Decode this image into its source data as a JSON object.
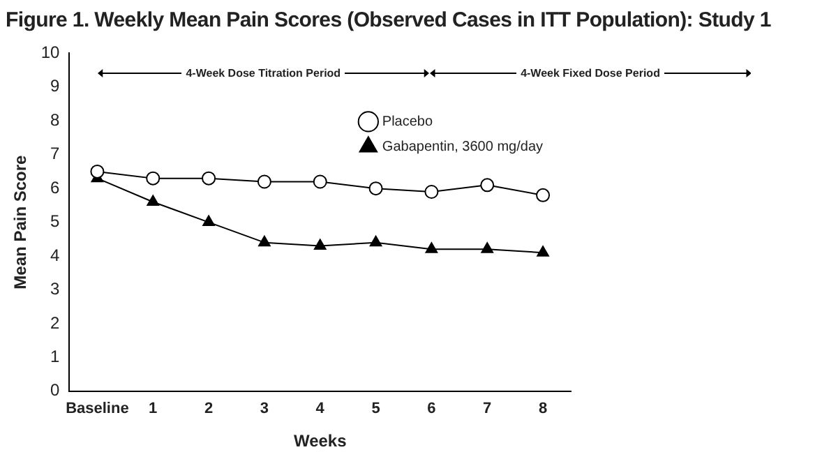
{
  "chart_data": {
    "type": "line",
    "title": "Figure 1. Weekly Mean Pain Scores (Observed Cases in ITT Population): Study 1",
    "xlabel": "Weeks",
    "ylabel": "Mean Pain Score",
    "categories": [
      "Baseline",
      "1",
      "2",
      "3",
      "4",
      "5",
      "6",
      "7",
      "8"
    ],
    "series": [
      {
        "name": "Placebo",
        "color": "#000000",
        "marker": "circle",
        "values": [
          6.5,
          6.3,
          6.3,
          6.2,
          6.2,
          6.0,
          5.9,
          6.1,
          5.8
        ]
      },
      {
        "name": "Gabapentin, 3600 mg/day",
        "color": "#000000",
        "marker": "triangle",
        "values": [
          6.3,
          5.6,
          5.0,
          4.4,
          4.3,
          4.4,
          4.2,
          4.2,
          4.1
        ]
      }
    ],
    "annotations": [
      "4-Week Dose Titration Period",
      "4-Week Fixed Dose Period"
    ],
    "ylim": [
      0,
      10
    ],
    "yticks": [
      0,
      1,
      2,
      3,
      4,
      5,
      6,
      7,
      8,
      9,
      10
    ],
    "grid": false,
    "legend": "top right",
    "line_style": "solid"
  }
}
